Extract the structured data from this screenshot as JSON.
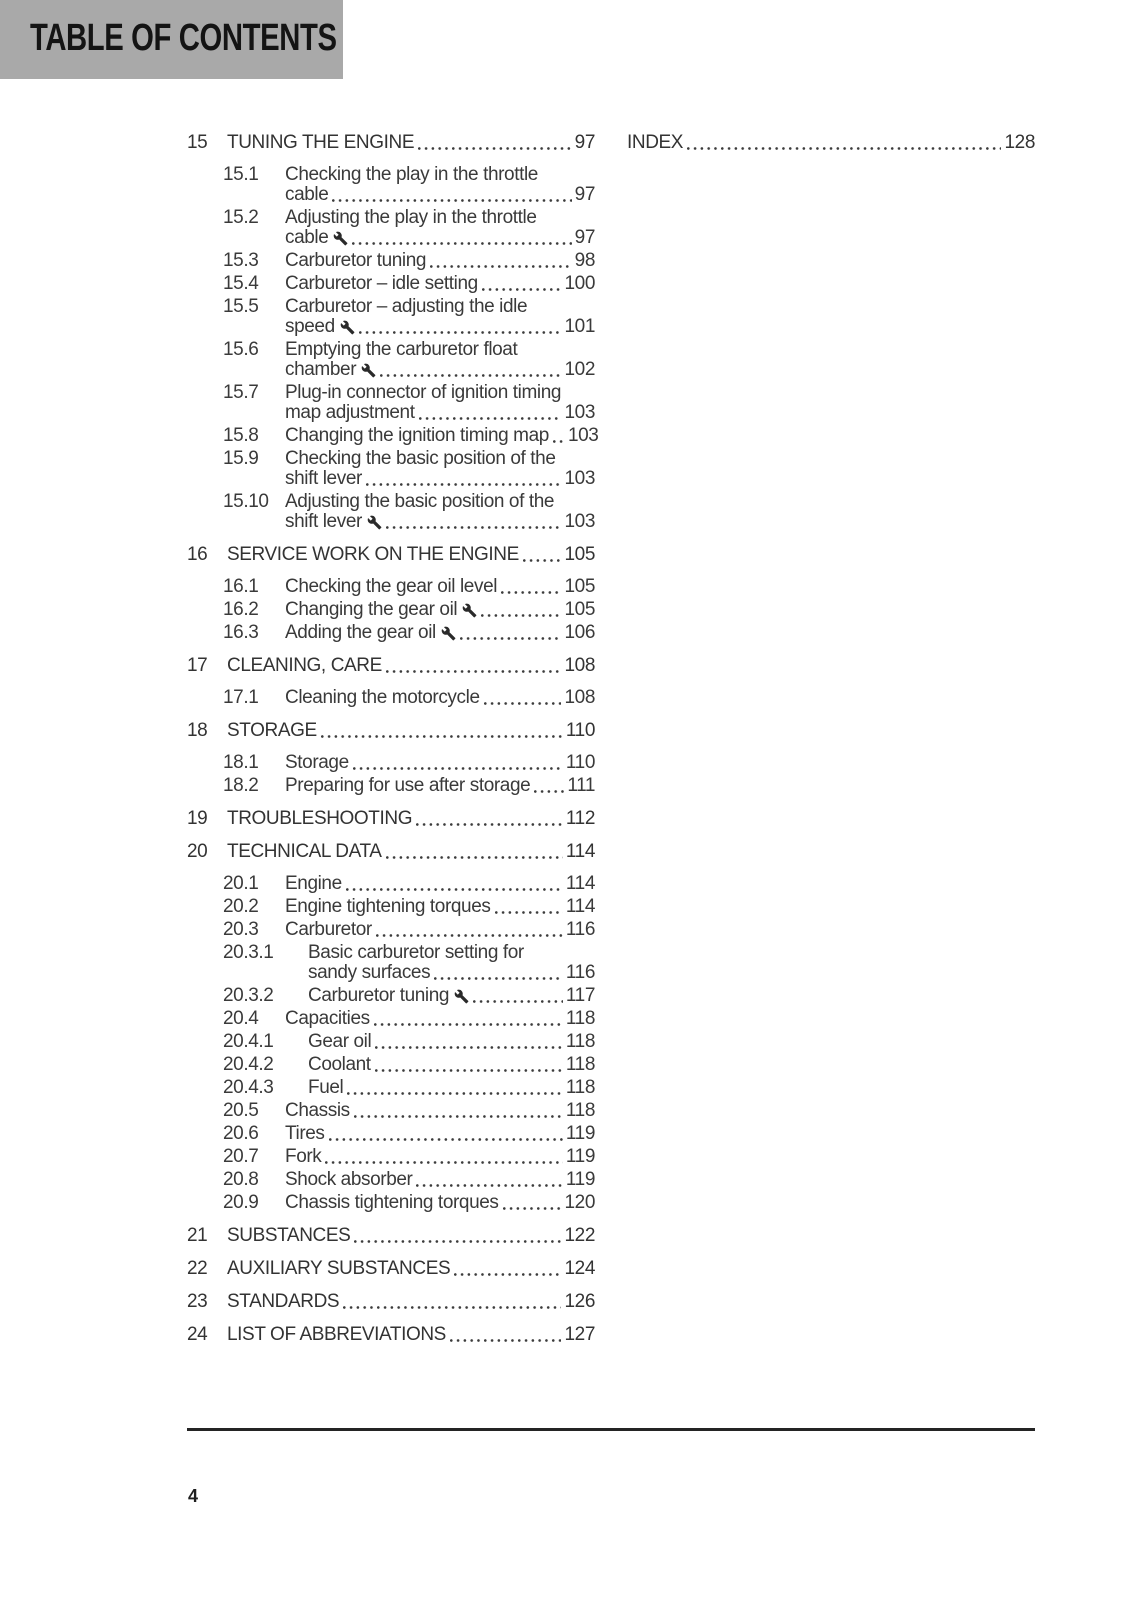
{
  "header": {
    "title": "TABLE OF CONTENTS"
  },
  "footer": {
    "page_number": "4"
  },
  "colors": {
    "header_bg": "#a9a9a9",
    "header_text": "#141414",
    "body_text": "#3a3a3a",
    "rule": "#242424"
  },
  "icons": {
    "adjustment_marker": "wrench-icon"
  },
  "toc": {
    "left_column": [
      {
        "num": "15",
        "title": "TUNING THE ENGINE",
        "page": "97",
        "entries": [
          {
            "num": "15.1",
            "lines": [
              "Checking the play in the throttle",
              "cable"
            ],
            "page": "97",
            "wrench": false
          },
          {
            "num": "15.2",
            "lines": [
              "Adjusting the play in the throttle",
              "cable"
            ],
            "page": "97",
            "wrench": true
          },
          {
            "num": "15.3",
            "lines": [
              "Carburetor tuning"
            ],
            "page": "98",
            "wrench": false
          },
          {
            "num": "15.4",
            "lines": [
              "Carburetor – idle setting"
            ],
            "page": "100",
            "wrench": false
          },
          {
            "num": "15.5",
            "lines": [
              "Carburetor – adjusting the idle",
              "speed"
            ],
            "page": "101",
            "wrench": true
          },
          {
            "num": "15.6",
            "lines": [
              "Emptying the carburetor float",
              "chamber"
            ],
            "page": "102",
            "wrench": true
          },
          {
            "num": "15.7",
            "lines": [
              "Plug-in connector of ignition timing",
              "map adjustment"
            ],
            "page": "103",
            "wrench": false
          },
          {
            "num": "15.8",
            "lines": [
              "Changing the ignition timing map"
            ],
            "page": "103",
            "wrench": false
          },
          {
            "num": "15.9",
            "lines": [
              "Checking the basic position of the",
              "shift lever"
            ],
            "page": "103",
            "wrench": false
          },
          {
            "num": "15.10",
            "lines": [
              "Adjusting the basic position of the",
              "shift lever"
            ],
            "page": "103",
            "wrench": true
          }
        ]
      },
      {
        "num": "16",
        "title": "SERVICE WORK ON THE ENGINE",
        "page": "105",
        "entries": [
          {
            "num": "16.1",
            "lines": [
              "Checking the gear oil level"
            ],
            "page": "105",
            "wrench": false
          },
          {
            "num": "16.2",
            "lines": [
              "Changing the gear oil"
            ],
            "page": "105",
            "wrench": true
          },
          {
            "num": "16.3",
            "lines": [
              "Adding the gear oil"
            ],
            "page": "106",
            "wrench": true
          }
        ]
      },
      {
        "num": "17",
        "title": "CLEANING, CARE",
        "page": "108",
        "entries": [
          {
            "num": "17.1",
            "lines": [
              "Cleaning the motorcycle"
            ],
            "page": "108",
            "wrench": false
          }
        ]
      },
      {
        "num": "18",
        "title": "STORAGE",
        "page": "110",
        "entries": [
          {
            "num": "18.1",
            "lines": [
              "Storage"
            ],
            "page": "110",
            "wrench": false
          },
          {
            "num": "18.2",
            "lines": [
              "Preparing for use after storage"
            ],
            "page": "111",
            "wrench": false
          }
        ]
      },
      {
        "num": "19",
        "title": "TROUBLESHOOTING",
        "page": "112",
        "entries": []
      },
      {
        "num": "20",
        "title": "TECHNICAL DATA",
        "page": "114",
        "entries": [
          {
            "num": "20.1",
            "lines": [
              "Engine"
            ],
            "page": "114",
            "wrench": false
          },
          {
            "num": "20.2",
            "lines": [
              "Engine tightening torques"
            ],
            "page": "114",
            "wrench": false
          },
          {
            "num": "20.3",
            "lines": [
              "Carburetor"
            ],
            "page": "116",
            "wrench": false
          },
          {
            "num": "20.3.1",
            "lines": [
              "Basic carburetor setting for",
              "sandy surfaces"
            ],
            "page": "116",
            "wrench": false
          },
          {
            "num": "20.3.2",
            "lines": [
              "Carburetor tuning"
            ],
            "page": "117",
            "wrench": true
          },
          {
            "num": "20.4",
            "lines": [
              "Capacities"
            ],
            "page": "118",
            "wrench": false
          },
          {
            "num": "20.4.1",
            "lines": [
              "Gear oil"
            ],
            "page": "118",
            "wrench": false
          },
          {
            "num": "20.4.2",
            "lines": [
              "Coolant"
            ],
            "page": "118",
            "wrench": false
          },
          {
            "num": "20.4.3",
            "lines": [
              "Fuel"
            ],
            "page": "118",
            "wrench": false
          },
          {
            "num": "20.5",
            "lines": [
              "Chassis"
            ],
            "page": "118",
            "wrench": false
          },
          {
            "num": "20.6",
            "lines": [
              "Tires"
            ],
            "page": "119",
            "wrench": false
          },
          {
            "num": "20.7",
            "lines": [
              "Fork"
            ],
            "page": "119",
            "wrench": false
          },
          {
            "num": "20.8",
            "lines": [
              "Shock absorber"
            ],
            "page": "119",
            "wrench": false
          },
          {
            "num": "20.9",
            "lines": [
              "Chassis tightening torques"
            ],
            "page": "120",
            "wrench": false
          }
        ]
      },
      {
        "num": "21",
        "title": "SUBSTANCES",
        "page": "122",
        "entries": []
      },
      {
        "num": "22",
        "title": "AUXILIARY SUBSTANCES",
        "page": "124",
        "entries": []
      },
      {
        "num": "23",
        "title": "STANDARDS",
        "page": "126",
        "entries": []
      },
      {
        "num": "24",
        "title": "LIST OF ABBREVIATIONS",
        "page": "127",
        "entries": []
      }
    ],
    "right_column": [
      {
        "num": "",
        "title": "INDEX",
        "page": "128",
        "entries": []
      }
    ]
  }
}
